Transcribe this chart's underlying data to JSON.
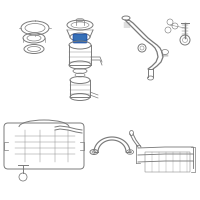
{
  "bg_color": "#ffffff",
  "border_color": "#d0d0d0",
  "gray": "#7a7a7a",
  "dark_gray": "#555555",
  "blue": "#2060b0",
  "lw": 0.7
}
